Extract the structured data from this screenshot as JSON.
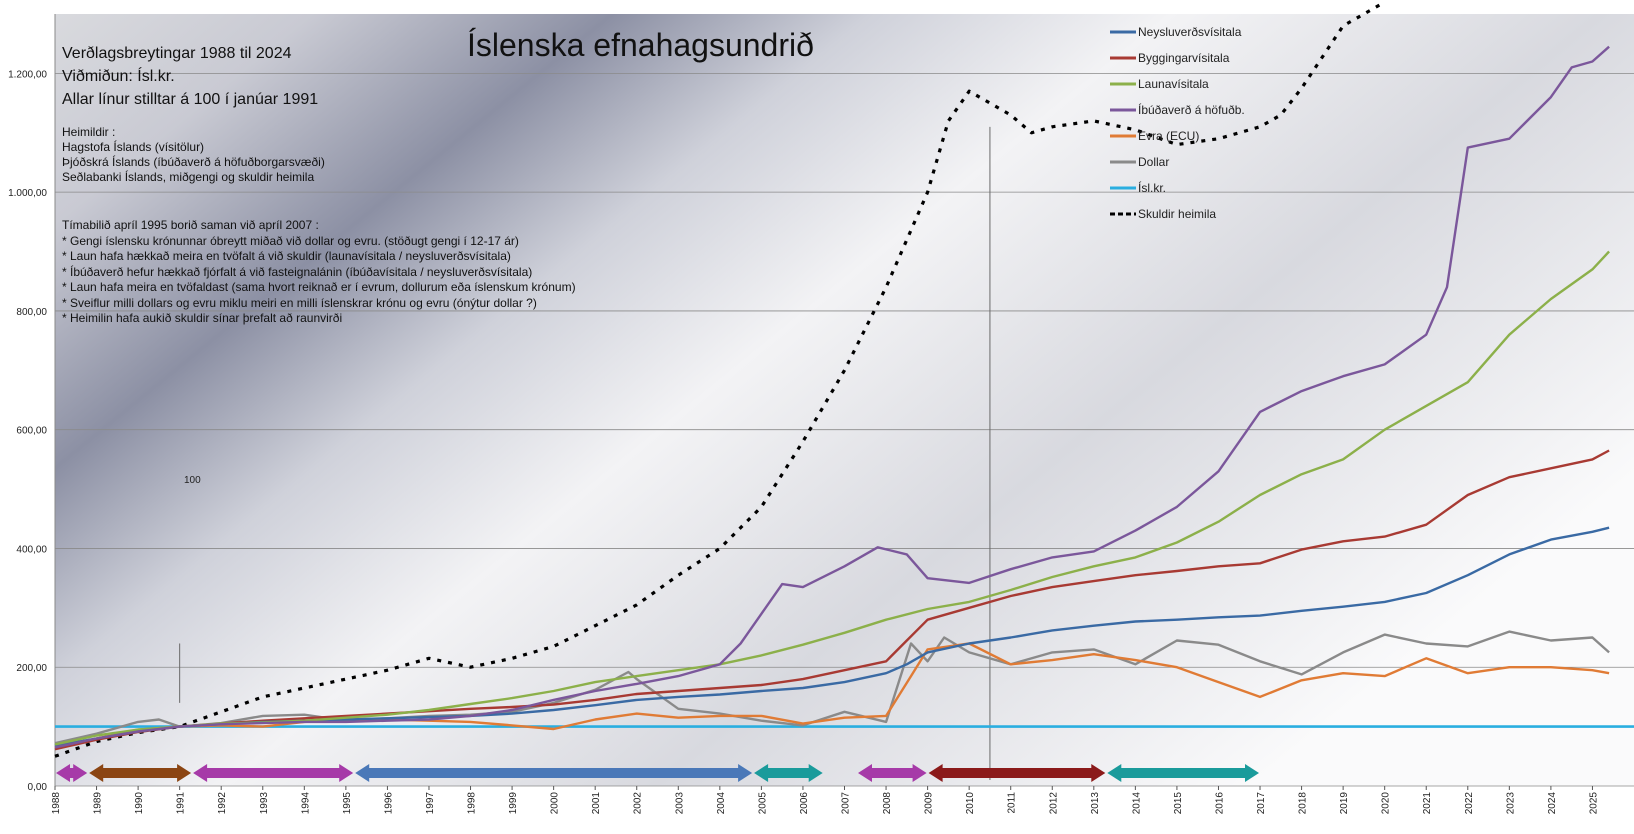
{
  "chart_data": {
    "type": "line",
    "title": "Íslenska efnahagsundrið",
    "subtitle_lines": [
      "Verðlagsbreytingar   1988 til  2024",
      "Viðmiðun:     Ísl.kr.",
      "Allar línur stilltar á  100   í  janúar 1991"
    ],
    "source_lines": [
      "Heimildir  :",
      "Hagstofa   Íslands  (vísitölur)",
      "Þjóðskrá Íslands  (íbúðaverð  á höfuðborgarsvæði)",
      "Seðlabanki Íslands, miðgengi og skuldir heimila"
    ],
    "note_lines": [
      "Tímabilið   apríl 1995   borið saman við  apríl 2007  :",
      "*  Gengi íslensku krónunnar óbreytt miðað við  dollar og evru.  (stöðugt gengi í 12-17 ár)",
      "*  Laun hafa hækkað meira en tvöfalt á við skuldir (launavísitala  / neysluverðsvísitala)",
      "*  Íbúðaverð  hefur hækkað fjórfalt á við fasteignalánin  (íbúðavísitala  / neysluverðsvísitala)",
      "*  Laun hafa meira en tvöfaldast  (sama hvort reiknað er í  evrum,  dollurum eða íslenskum krónum)",
      "*  Sveiflur milli dollars og evru  miklu meiri en milli  íslenskrar krónu og evru   (ónýtur dollar ?)",
      "*  Heimilin hafa aukið skuldir sínar þrefalt að raunvirði"
    ],
    "marker_label": "100",
    "ylim": [
      0,
      1300
    ],
    "yticks": [
      0,
      200,
      400,
      600,
      800,
      1000,
      1200
    ],
    "ytick_labels": [
      "0,00",
      "200,00",
      "400,00",
      "600,00",
      "800,00",
      "1.000,00",
      "1.200,00"
    ],
    "xlim": [
      1988.0,
      2026.0
    ],
    "xtick_labels": [
      "1988",
      "1989",
      "1990",
      "1991",
      "1992",
      "1993",
      "1994",
      "1995",
      "1996",
      "1997",
      "1998",
      "1999",
      "2000",
      "2001",
      "2002",
      "2003",
      "2004",
      "2005",
      "2006",
      "2007",
      "2008",
      "2009",
      "2010",
      "2011",
      "2012",
      "2013",
      "2014",
      "2015",
      "2016",
      "2017",
      "2018",
      "2019",
      "2020",
      "2021",
      "2022",
      "2023",
      "2024",
      "2025"
    ],
    "vlines": [
      1991.0,
      2010.5
    ],
    "series": [
      {
        "name": "Neysluverðsvísitala",
        "color": "#3a6aa4",
        "style": "solid",
        "x": [
          1988,
          1989,
          1990,
          1991,
          1992,
          1993,
          1994,
          1995,
          1996,
          1997,
          1998,
          1999,
          2000,
          2001,
          2002,
          2003,
          2004,
          2005,
          2006,
          2007,
          2008,
          2008.5,
          2009,
          2010,
          2011,
          2012,
          2013,
          2014,
          2015,
          2016,
          2017,
          2018,
          2019,
          2020,
          2021,
          2022,
          2023,
          2024,
          2025,
          2025.4
        ],
        "y": [
          68,
          80,
          92,
          100,
          104,
          108,
          110,
          112,
          114,
          116,
          118,
          122,
          128,
          136,
          145,
          150,
          154,
          160,
          165,
          175,
          190,
          205,
          225,
          240,
          250,
          262,
          270,
          277,
          280,
          284,
          287,
          295,
          302,
          310,
          325,
          355,
          390,
          415,
          428,
          435
        ]
      },
      {
        "name": "Byggingarvísitala",
        "color": "#a83a33",
        "style": "solid",
        "x": [
          1988,
          1989,
          1990,
          1991,
          1992,
          1993,
          1994,
          1995,
          1996,
          1997,
          1998,
          1999,
          2000,
          2001,
          2002,
          2003,
          2004,
          2005,
          2006,
          2007,
          2008,
          2008.5,
          2009,
          2010,
          2011,
          2012,
          2013,
          2014,
          2015,
          2016,
          2017,
          2018,
          2019,
          2020,
          2021,
          2022,
          2023,
          2024,
          2025,
          2025.4
        ],
        "y": [
          62,
          78,
          91,
          100,
          105,
          110,
          114,
          118,
          122,
          126,
          130,
          133,
          137,
          145,
          155,
          160,
          165,
          170,
          180,
          195,
          210,
          245,
          280,
          300,
          320,
          335,
          345,
          355,
          362,
          370,
          375,
          398,
          412,
          420,
          440,
          490,
          520,
          535,
          550,
          565
        ]
      },
      {
        "name": "Launavísitala",
        "color": "#8cb04a",
        "style": "solid",
        "x": [
          1988,
          1989,
          1990,
          1991,
          1992,
          1993,
          1994,
          1995,
          1996,
          1997,
          1998,
          1999,
          2000,
          2001,
          2002,
          2003,
          2004,
          2005,
          2006,
          2007,
          2008,
          2009,
          2010,
          2011,
          2012,
          2013,
          2014,
          2015,
          2016,
          2017,
          2018,
          2019,
          2020,
          2021,
          2022,
          2023,
          2024,
          2025,
          2025.4
        ],
        "y": [
          70,
          85,
          95,
          100,
          105,
          107,
          110,
          115,
          120,
          128,
          138,
          148,
          160,
          175,
          185,
          195,
          205,
          220,
          238,
          258,
          280,
          298,
          310,
          330,
          352,
          370,
          385,
          410,
          445,
          490,
          525,
          550,
          600,
          640,
          680,
          760,
          820,
          870,
          900
        ]
      },
      {
        "name": "Íbúðaverð á höfuðb.",
        "color": "#7b579b",
        "style": "solid",
        "x": [
          1988,
          1989,
          1990,
          1991,
          1992,
          1993,
          1994,
          1995,
          1996,
          1997,
          1998,
          1999,
          2000,
          2001,
          2002,
          2003,
          2004,
          2004.5,
          2005,
          2005.5,
          2006,
          2007,
          2007.8,
          2008.5,
          2009,
          2010,
          2011,
          2012,
          2013,
          2014,
          2015,
          2016,
          2017,
          2018,
          2019,
          2020,
          2021,
          2021.5,
          2022,
          2023,
          2024,
          2024.5,
          2025,
          2025.4
        ],
        "y": [
          65,
          80,
          92,
          100,
          104,
          106,
          108,
          108,
          110,
          112,
          118,
          128,
          145,
          160,
          172,
          185,
          205,
          240,
          290,
          340,
          335,
          370,
          402,
          390,
          350,
          342,
          365,
          385,
          395,
          430,
          470,
          530,
          630,
          665,
          690,
          710,
          760,
          840,
          1075,
          1090,
          1160,
          1210,
          1220,
          1245
        ]
      },
      {
        "name": "Evra (ECU)",
        "color": "#e07b35",
        "style": "solid",
        "x": [
          1988,
          1989,
          1990,
          1991,
          1992,
          1993,
          1994,
          1995,
          1996,
          1997,
          1998,
          1999,
          2000,
          2001,
          2002,
          2003,
          2004,
          2005,
          2006,
          2007,
          2008,
          2008.6,
          2009,
          2010,
          2011,
          2012,
          2013,
          2014,
          2015,
          2016,
          2017,
          2018,
          2019,
          2020,
          2021,
          2022,
          2023,
          2024,
          2025,
          2025.4
        ],
        "y": [
          63,
          80,
          95,
          100,
          102,
          100,
          108,
          112,
          112,
          110,
          108,
          102,
          96,
          112,
          122,
          115,
          118,
          118,
          105,
          115,
          118,
          185,
          230,
          240,
          205,
          212,
          222,
          212,
          200,
          175,
          150,
          178,
          190,
          185,
          215,
          190,
          200,
          200,
          195,
          190
        ]
      },
      {
        "name": "Dollar",
        "color": "#8a8a8a",
        "style": "solid",
        "x": [
          1988,
          1989,
          1990,
          1990.5,
          1991,
          1992,
          1993,
          1994,
          1995,
          1996,
          1997,
          1998,
          1999,
          2000,
          2001,
          2001.8,
          2002,
          2003,
          2004,
          2005,
          2006,
          2007,
          2008,
          2008.6,
          2009,
          2009.4,
          2010,
          2011,
          2012,
          2013,
          2014,
          2015,
          2016,
          2017,
          2018,
          2019,
          2020,
          2021,
          2022,
          2023,
          2024,
          2025,
          2025.4
        ],
        "y": [
          72,
          88,
          108,
          112,
          100,
          106,
          118,
          120,
          110,
          114,
          118,
          120,
          125,
          140,
          162,
          192,
          180,
          130,
          122,
          110,
          102,
          125,
          108,
          240,
          210,
          250,
          225,
          205,
          225,
          230,
          205,
          245,
          238,
          210,
          188,
          225,
          255,
          240,
          235,
          260,
          245,
          250,
          225
        ]
      },
      {
        "name": "Ísl.kr.",
        "color": "#2aaee0",
        "style": "solid",
        "x": [
          1988,
          2026
        ],
        "y": [
          100,
          100
        ]
      },
      {
        "name": "Skuldir heimila",
        "color": "#000000",
        "style": "dotted",
        "x": [
          1988,
          1989,
          1990,
          1991,
          1992,
          1993,
          1994,
          1995,
          1996,
          1997,
          1998,
          1999,
          2000,
          2001,
          2002,
          2003,
          2004,
          2005,
          2006,
          2007,
          2008,
          2009,
          2009.5,
          2010,
          2011,
          2011.5,
          2012,
          2013,
          2014,
          2015,
          2016,
          2017,
          2017.5,
          2018,
          2019,
          2020
        ],
        "y": [
          50,
          75,
          90,
          100,
          125,
          150,
          165,
          180,
          195,
          215,
          200,
          215,
          235,
          270,
          305,
          355,
          400,
          470,
          580,
          700,
          840,
          1000,
          1120,
          1170,
          1130,
          1100,
          1110,
          1120,
          1105,
          1080,
          1090,
          1110,
          1130,
          1175,
          1280,
          1320
        ]
      }
    ],
    "period_arrows": [
      {
        "start": 1988.0,
        "end": 1988.8,
        "color": "#a63aa8"
      },
      {
        "start": 1988.8,
        "end": 1991.3,
        "color": "#8b4513"
      },
      {
        "start": 1991.3,
        "end": 1995.2,
        "color": "#a63aa8"
      },
      {
        "start": 1995.2,
        "end": 2004.8,
        "color": "#4a78b8"
      },
      {
        "start": 2004.8,
        "end": 2006.5,
        "color": "#1a9b9b"
      },
      {
        "start": 2007.3,
        "end": 2009.0,
        "color": "#a63aa8"
      },
      {
        "start": 2009.0,
        "end": 2013.3,
        "color": "#8b1a1a"
      },
      {
        "start": 2013.3,
        "end": 2017.0,
        "color": "#1a9b9b"
      }
    ]
  }
}
